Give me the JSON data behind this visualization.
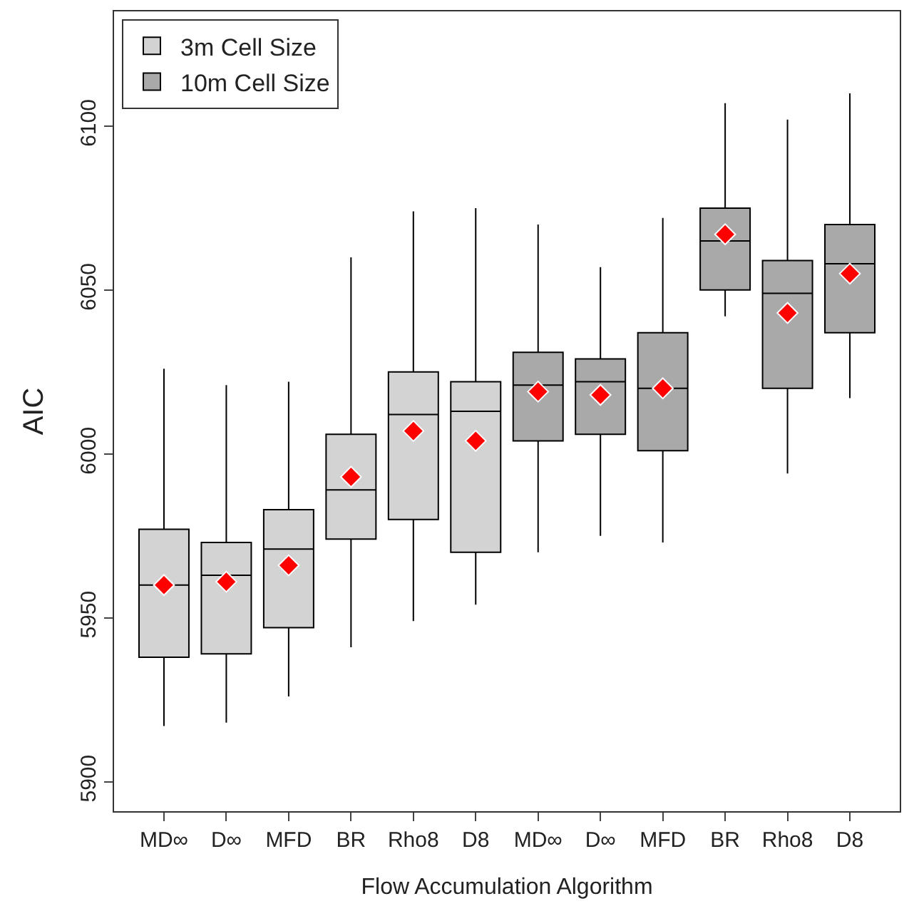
{
  "chart_data": {
    "type": "box",
    "xlabel": "Flow Accumulation Algorithm",
    "ylabel": "AIC",
    "categories": [
      "MD∞",
      "D∞",
      "MFD",
      "BR",
      "Rho8",
      "D8",
      "MD∞",
      "D∞",
      "MFD",
      "BR",
      "Rho8",
      "D8"
    ],
    "ylim": [
      5891,
      6135
    ],
    "yticks": [
      5900,
      5950,
      6000,
      6050,
      6100
    ],
    "legend": "top left",
    "series": [
      {
        "name": "3m Cell Size",
        "color": "#d3d3d3",
        "boxes": [
          {
            "low": 5917,
            "q1": 5938,
            "median": 5960,
            "q3": 5977,
            "high": 6026,
            "mean": 5960
          },
          {
            "low": 5918,
            "q1": 5939,
            "median": 5963,
            "q3": 5973,
            "high": 6021,
            "mean": 5961
          },
          {
            "low": 5926,
            "q1": 5947,
            "median": 5971,
            "q3": 5983,
            "high": 6022,
            "mean": 5966
          },
          {
            "low": 5941,
            "q1": 5974,
            "median": 5989,
            "q3": 6006,
            "high": 6060,
            "mean": 5993
          },
          {
            "low": 5949,
            "q1": 5980,
            "median": 6012,
            "q3": 6025,
            "high": 6074,
            "mean": 6007
          },
          {
            "low": 5954,
            "q1": 5970,
            "median": 6013,
            "q3": 6022,
            "high": 6075,
            "mean": 6004
          },
          null,
          null,
          null,
          null,
          null,
          null
        ]
      },
      {
        "name": "10m Cell Size",
        "color": "#a9a9a9",
        "boxes": [
          null,
          null,
          null,
          null,
          null,
          null,
          {
            "low": 5970,
            "q1": 6004,
            "median": 6021,
            "q3": 6031,
            "high": 6070,
            "mean": 6019
          },
          {
            "low": 5975,
            "q1": 6006,
            "median": 6022,
            "q3": 6029,
            "high": 6057,
            "mean": 6018
          },
          {
            "low": 5973,
            "q1": 6001,
            "median": 6020,
            "q3": 6037,
            "high": 6072,
            "mean": 6020
          },
          {
            "low": 6042,
            "q1": 6050,
            "median": 6065,
            "q3": 6075,
            "high": 6107,
            "mean": 6067
          },
          {
            "low": 5994,
            "q1": 6020,
            "median": 6049,
            "q3": 6059,
            "high": 6102,
            "mean": 6043
          },
          {
            "low": 6017,
            "q1": 6037,
            "median": 6058,
            "q3": 6070,
            "high": 6110,
            "mean": 6055
          }
        ]
      }
    ]
  }
}
